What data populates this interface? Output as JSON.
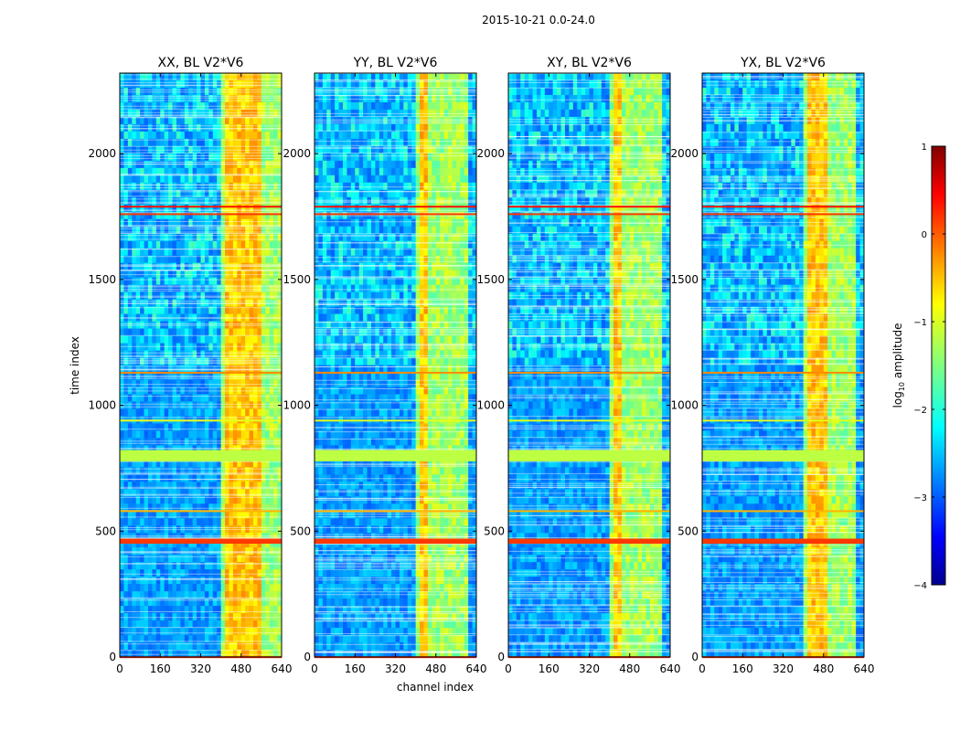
{
  "chart_data": {
    "type": "heatmap",
    "title": "2015-10-21 0.0-24.0",
    "xlabel": "channel index",
    "ylabel": "time index",
    "xlim": [
      0,
      640
    ],
    "ylim": [
      0,
      2320
    ],
    "x_ticks": [
      0,
      160,
      320,
      480,
      640
    ],
    "y_ticks": [
      0,
      500,
      1000,
      1500,
      2000
    ],
    "panels": [
      {
        "title": "XX, BL V2*V6",
        "band_channels": [
          [
            408,
            640
          ]
        ],
        "hot_channels": [
          [
            420,
            510
          ],
          [
            520,
            560
          ]
        ]
      },
      {
        "title": "YY, BL V2*V6",
        "band_channels": [
          [
            408,
            600
          ]
        ],
        "hot_channels": [
          [
            420,
            440
          ]
        ]
      },
      {
        "title": "XY, BL V2*V6",
        "band_channels": [
          [
            408,
            600
          ]
        ],
        "hot_channels": [
          [
            420,
            440
          ]
        ]
      },
      {
        "title": "YX, BL V2*V6",
        "band_channels": [
          [
            408,
            600
          ]
        ],
        "hot_channels": [
          [
            410,
            500
          ]
        ]
      }
    ],
    "flagged_rows": [
      {
        "time": 1790,
        "level": 0.3
      },
      {
        "time": 1760,
        "level": 0.1
      },
      {
        "time": 1130,
        "level": -0.3
      },
      {
        "time": 940,
        "level": -1.0
      },
      {
        "time": 800,
        "width": 45,
        "level": -1.2
      },
      {
        "time": 580,
        "level": -0.5
      },
      {
        "time": 460,
        "width": 20,
        "level": 0.1
      },
      {
        "time": 0,
        "level": 0.2
      }
    ],
    "colorbar": {
      "label": "log10 amplitude",
      "label_main": "log",
      "label_sub": "10",
      "label_rest": " amplitude",
      "range": [
        -4,
        1
      ],
      "ticks": [
        -4,
        -3,
        -2,
        -1,
        0,
        1
      ],
      "tick_labels": [
        "−4",
        "−3",
        "−2",
        "−1",
        "0",
        "1"
      ],
      "colormap": "jet"
    }
  }
}
